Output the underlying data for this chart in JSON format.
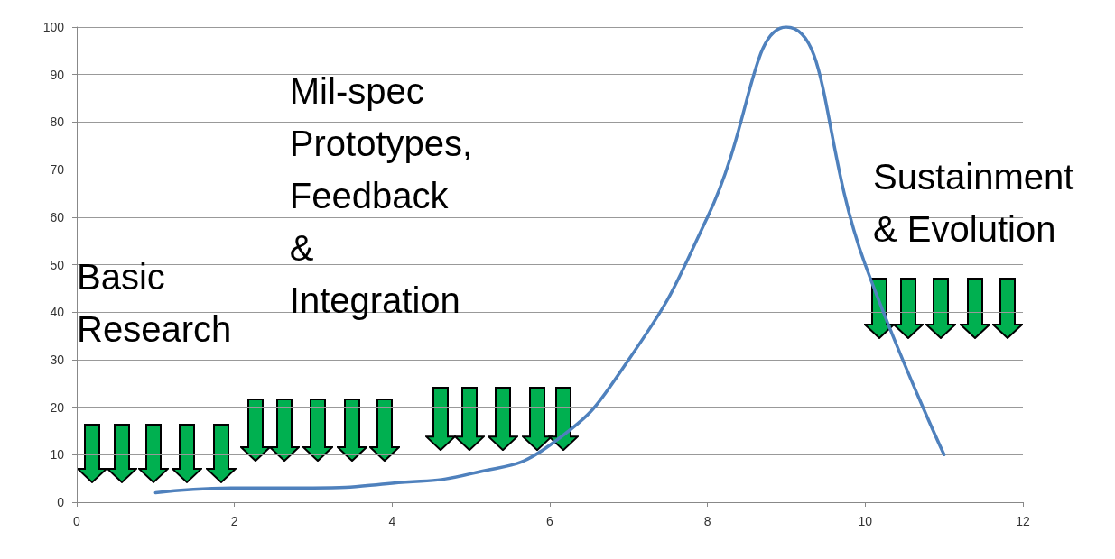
{
  "chart_data": {
    "type": "line",
    "x": [
      1,
      2,
      3,
      4,
      5,
      6,
      7,
      8,
      9,
      10,
      11
    ],
    "series": [
      {
        "color": "#4f81bd",
        "values": [
          2,
          3,
          3,
          4,
          6,
          12,
          30,
          60,
          100,
          50,
          10
        ]
      }
    ],
    "xlim": [
      0,
      12
    ],
    "xticks": [
      0,
      2,
      4,
      6,
      8,
      10,
      12
    ],
    "ylim": [
      0,
      100
    ],
    "yticks": [
      0,
      10,
      20,
      30,
      40,
      50,
      60,
      70,
      80,
      90,
      100
    ],
    "grid": "y",
    "marker": "none",
    "line_style": "solid",
    "annotations": [
      "Basic\nResearch",
      "Mil-spec\nPrototypes,\nFeedback\n&\nIntegration",
      "Sustainment\n& Evolution"
    ]
  }
}
